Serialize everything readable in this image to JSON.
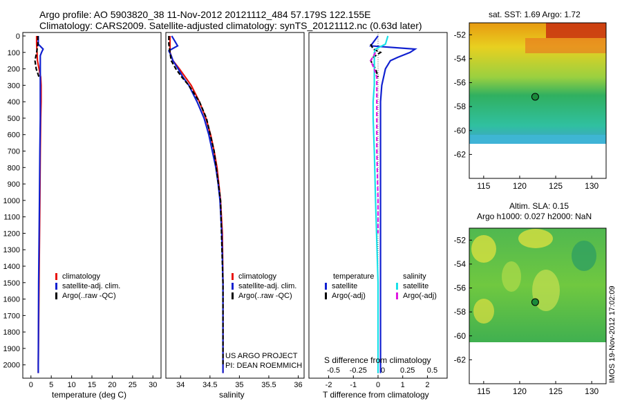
{
  "header": {
    "line1": "Argo profile: AO 5903820_38 11-Nov-2012 20121112_484 57.179S 122.155E",
    "line2": "Climatology: CARS2009. Satellite-adjusted climatology: synTS_20121112.nc (0.63d later)"
  },
  "colors": {
    "climatology": "#e8120c",
    "satellite": "#1020d0",
    "argo": "#000000",
    "sal_satellite": "#18e0e8",
    "sal_argo": "#e018e0"
  },
  "legend_profiles": [
    "climatology",
    "satellite-adj. clim.",
    "Argo(..raw -QC)"
  ],
  "legend_diff": {
    "temperature_title": "temperature",
    "salinity_title": "salinity",
    "satellite": "satellite",
    "argo": "Argo(-adj)"
  },
  "credit": {
    "line1": "US ARGO PROJECT",
    "line2": "PI: DEAN ROEMMICH"
  },
  "diff_top_axis_label": "S difference from climatology",
  "map_sst_title": "sat. SST: 1.69 Argo: 1.72",
  "map_sla_title1": "Altim. SLA: 0.15",
  "map_sla_title2": "Argo h1000: 0.027 h2000: NaN",
  "imos_stamp": "IMOS 19-Nov-2012 17:02:09",
  "chart_data": [
    {
      "type": "line",
      "xlabel": "temperature (deg C)",
      "xlim": [
        -2,
        32
      ],
      "xticks": [
        0,
        5,
        10,
        15,
        20,
        25,
        30
      ],
      "ylim": [
        0,
        2060
      ],
      "yticks": [
        0,
        100,
        200,
        300,
        400,
        500,
        600,
        700,
        800,
        900,
        1000,
        1100,
        1200,
        1300,
        1400,
        1500,
        1600,
        1700,
        1800,
        1900,
        2000
      ],
      "y_reversed": true,
      "series": [
        {
          "name": "climatology",
          "depth": [
            0,
            50,
            100,
            150,
            200,
            250,
            300,
            400,
            500,
            700,
            1000,
            1500,
            2000,
            2050
          ],
          "values": [
            1.4,
            1.4,
            1.5,
            1.6,
            2.0,
            2.4,
            2.5,
            2.5,
            2.4,
            2.3,
            2.2,
            2.0,
            1.8,
            1.8
          ]
        },
        {
          "name": "satellite-adj. clim.",
          "depth": [
            0,
            50,
            80,
            100,
            120,
            150,
            200,
            300,
            400,
            500,
            700,
            1000,
            1500,
            2000,
            2050
          ],
          "values": [
            1.8,
            1.8,
            3.0,
            2.6,
            2.3,
            2.3,
            2.3,
            2.3,
            2.3,
            2.3,
            2.2,
            2.1,
            1.9,
            1.8,
            1.8
          ]
        },
        {
          "name": "Argo(..raw -QC)",
          "depth": [
            0,
            50,
            100,
            150,
            200,
            250
          ],
          "values": [
            1.7,
            1.7,
            1.4,
            1.0,
            1.3,
            2.0
          ]
        }
      ]
    },
    {
      "type": "line",
      "xlabel": "salinity",
      "xlim": [
        33.75,
        36.1
      ],
      "xticks": [
        34,
        34.5,
        35,
        35.5,
        36
      ],
      "ylim": [
        0,
        2060
      ],
      "y_reversed": true,
      "series": [
        {
          "name": "climatology",
          "depth": [
            0,
            100,
            150,
            200,
            250,
            300,
            400,
            500,
            600,
            700,
            800,
            900,
            1000,
            1200,
            1500,
            2000,
            2050
          ],
          "values": [
            33.82,
            33.82,
            33.87,
            33.98,
            34.08,
            34.18,
            34.32,
            34.43,
            34.51,
            34.57,
            34.62,
            34.65,
            34.68,
            34.71,
            34.72,
            34.72,
            34.72
          ]
        },
        {
          "name": "satellite-adj. clim.",
          "depth": [
            0,
            60,
            90,
            120,
            150,
            200,
            250,
            300,
            400,
            500,
            600,
            700,
            800,
            900,
            1000,
            1200,
            1500,
            2000,
            2050
          ],
          "values": [
            33.85,
            33.95,
            33.8,
            33.84,
            33.87,
            33.96,
            34.04,
            34.14,
            34.28,
            34.4,
            34.48,
            34.54,
            34.6,
            34.64,
            34.67,
            34.7,
            34.72,
            34.72,
            34.72
          ]
        },
        {
          "name": "Argo(..raw -QC)",
          "depth": [
            0,
            50,
            100,
            150,
            200,
            250,
            300,
            400,
            500,
            700,
            1000,
            1500,
            2000
          ],
          "values": [
            33.8,
            33.8,
            33.82,
            33.84,
            33.92,
            34.02,
            34.14,
            34.32,
            34.44,
            34.57,
            34.68,
            34.72,
            34.72
          ]
        }
      ]
    },
    {
      "type": "line",
      "xlabel": "T difference from climatology",
      "xlim": [
        -2.8,
        2.8
      ],
      "xticks": [
        -2,
        -1,
        0,
        1,
        2
      ],
      "x2label": "S difference from climatology",
      "x2ticks": [
        "-0.5",
        "-0.25",
        "0",
        "0.25",
        "0.5"
      ],
      "ylim": [
        0,
        2060
      ],
      "y_reversed": true,
      "series": [
        {
          "name": "temperature satellite",
          "depth": [
            0,
            60,
            80,
            100,
            130,
            150,
            200,
            300,
            400,
            500,
            700,
            1000,
            1500,
            2000,
            2050
          ],
          "values": [
            0.0,
            -0.3,
            1.5,
            1.3,
            0.8,
            0.5,
            0.3,
            0.15,
            0.1,
            0.1,
            0.1,
            0.1,
            0.1,
            0.1,
            0.1
          ]
        },
        {
          "name": "temperature Argo(-adj)",
          "depth": [
            50,
            80,
            100,
            130,
            150,
            200,
            250
          ],
          "values": [
            -0.3,
            -0.2,
            0.1,
            -0.2,
            -0.3,
            -0.1,
            0.0
          ]
        },
        {
          "name": "salinity satellite",
          "depth": [
            0,
            50,
            80,
            100,
            150,
            200,
            300,
            400,
            500,
            700,
            1000,
            1500,
            2000,
            2050
          ],
          "values": [
            0.4,
            0.3,
            -0.1,
            -0.15,
            -0.15,
            -0.15,
            -0.15,
            -0.2,
            -0.2,
            -0.15,
            -0.1,
            0.0,
            0.0,
            0.0
          ]
        },
        {
          "name": "salinity Argo(-adj)",
          "depth": [
            100,
            150,
            200,
            250,
            300,
            400,
            500,
            700,
            1000,
            1200
          ],
          "values": [
            -0.1,
            -0.3,
            -0.15,
            -0.05,
            -0.05,
            -0.05,
            -0.05,
            -0.05,
            0.0,
            0.0
          ]
        }
      ]
    },
    {
      "type": "heatmap",
      "title": "sat. SST: 1.69 Argo: 1.72",
      "xlim": [
        113,
        132
      ],
      "ylim": [
        -64,
        -51
      ],
      "xticks": [
        115,
        120,
        125,
        130
      ],
      "yticks": [
        -52,
        -54,
        -56,
        -58,
        -60,
        -62
      ],
      "marker": {
        "lon": 122.155,
        "lat": -57.179
      }
    },
    {
      "type": "heatmap",
      "title": "Altim. SLA: 0.15 / Argo h1000: 0.027 h2000: NaN",
      "xlim": [
        113,
        132
      ],
      "ylim": [
        -64,
        -51
      ],
      "xticks": [
        115,
        120,
        125,
        130
      ],
      "yticks": [
        -52,
        -54,
        -56,
        -58,
        -60,
        -62
      ],
      "marker": {
        "lon": 122.155,
        "lat": -57.179
      }
    }
  ]
}
